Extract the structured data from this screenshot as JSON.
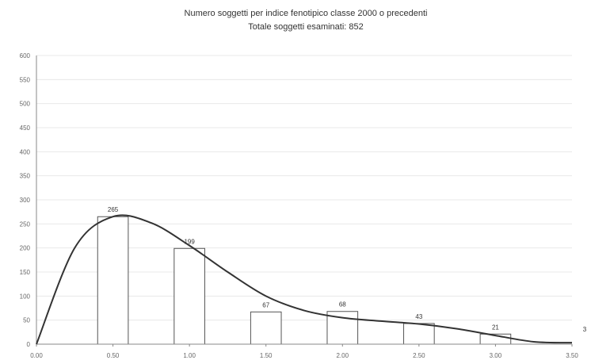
{
  "chart_data": {
    "type": "bar",
    "title": "Numero soggetti per indice fenotipico classe 2000 o precedenti",
    "subtitle": "Totale soggetti esaminati: 852",
    "categories": [
      "0.50",
      "1.00",
      "1.50",
      "2.00",
      "2.50",
      "3.00"
    ],
    "values": [
      265,
      199,
      67,
      68,
      43,
      21
    ],
    "x_ticks": [
      "0.00",
      "0.50",
      "1.00",
      "1.50",
      "2.00",
      "2.50",
      "3.00",
      "3.50"
    ],
    "y_ticks": [
      "0",
      "50",
      "100",
      "150",
      "200",
      "250",
      "300",
      "350",
      "400",
      "450",
      "500",
      "550",
      "600"
    ],
    "trend_curve": {
      "x": [
        0.0,
        0.25,
        0.5,
        0.75,
        1.0,
        1.25,
        1.5,
        1.75,
        2.0,
        2.25,
        2.5,
        2.75,
        3.0,
        3.25,
        3.5
      ],
      "y": [
        0,
        200,
        265,
        252,
        205,
        150,
        100,
        70,
        55,
        48,
        42,
        32,
        18,
        5,
        3
      ]
    },
    "end_label": "3",
    "xlim": [
      0.0,
      3.5
    ],
    "ylim": [
      0,
      600
    ],
    "grid": true,
    "legend": "none",
    "colors": {
      "bar_fill": "#ffffff",
      "bar_stroke": "#555555",
      "curve": "#333333",
      "grid": "#e8e8e8"
    }
  }
}
